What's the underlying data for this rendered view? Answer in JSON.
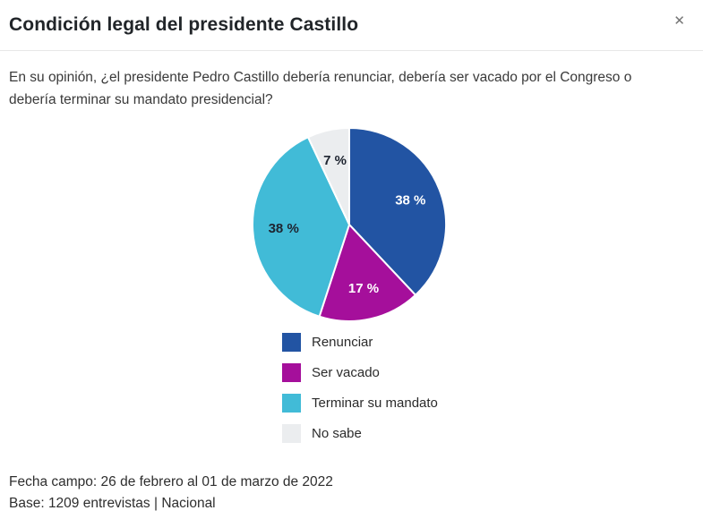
{
  "modal": {
    "title": "Condición legal del presidente Castillo",
    "close_glyph": "✕"
  },
  "question": "En su opinión, ¿el presidente Pedro Castillo debería renunciar, debería ser vacado por el Congreso o debería terminar su mandato presidencial?",
  "chart_data": {
    "type": "pie",
    "title": "Condición legal del presidente Castillo",
    "start_angle_deg": 0,
    "direction": "clockwise",
    "total": 100,
    "slices": [
      {
        "label": "Renunciar",
        "value": 38,
        "display": "38 %",
        "color": "#2254a3",
        "label_color": "#ffffff"
      },
      {
        "label": "Ser vacado",
        "value": 17,
        "display": "17 %",
        "color": "#a50f9b",
        "label_color": "#ffffff"
      },
      {
        "label": "Terminar su mandato",
        "value": 38,
        "display": "38 %",
        "color": "#41bbd7",
        "label_color": "#1e2430"
      },
      {
        "label": "No sabe",
        "value": 7,
        "display": "7 %",
        "color": "#ebedef",
        "label_color": "#1e2430"
      }
    ],
    "legend_position": "bottom"
  },
  "footer": {
    "fecha": "Fecha campo: 26 de febrero al 01 de marzo de 2022",
    "base": "Base: 1209 entrevistas | Nacional"
  },
  "colors": {
    "divider": "#e7e7e7",
    "close_icon": "#757575",
    "title_text": "#212529",
    "body_text": "#3a3a3a"
  }
}
